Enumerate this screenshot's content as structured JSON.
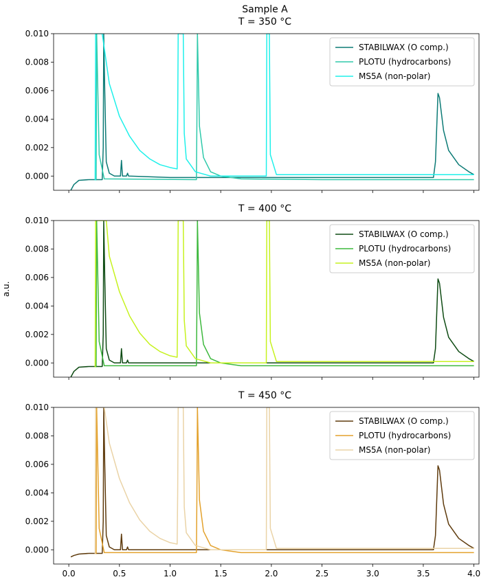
{
  "figure": {
    "suptitle": "Sample A",
    "ylabel": "a.u."
  },
  "chart_data": [
    {
      "type": "line",
      "title": "T = 350 °C",
      "xlim": [
        -0.15,
        4.05
      ],
      "ylim": [
        -0.001,
        0.01
      ],
      "yticks": [
        0.0,
        0.002,
        0.004,
        0.006,
        0.008,
        0.01
      ],
      "ytick_labels": [
        "0.000",
        "0.002",
        "0.004",
        "0.006",
        "0.008",
        "0.010"
      ],
      "xticks": [
        0.0,
        0.5,
        1.0,
        1.5,
        2.0,
        2.5,
        3.0,
        3.5,
        4.0
      ],
      "xtick_labels": [],
      "grid": false,
      "legend_position": "top-right",
      "series": [
        {
          "name": "STABILWAX (O comp.)",
          "color": "#0b7a75",
          "points": [
            [
              0.02,
              -0.001
            ],
            [
              0.05,
              -0.0006
            ],
            [
              0.1,
              -0.0003
            ],
            [
              0.2,
              -0.00025
            ],
            [
              0.33,
              -0.00025
            ],
            [
              0.34,
              0.002
            ],
            [
              0.345,
              0.01
            ],
            [
              0.355,
              0.006
            ],
            [
              0.37,
              0.001
            ],
            [
              0.4,
              0.0002
            ],
            [
              0.45,
              0.0
            ],
            [
              0.51,
              0.0
            ],
            [
              0.52,
              0.0011
            ],
            [
              0.53,
              0.0
            ],
            [
              0.57,
              0.0
            ],
            [
              0.58,
              0.0002
            ],
            [
              0.59,
              0.0
            ],
            [
              1.0,
              -0.0001
            ],
            [
              2.0,
              -0.0001
            ],
            [
              3.0,
              -0.0001
            ],
            [
              3.6,
              -0.0001
            ],
            [
              3.62,
              0.001
            ],
            [
              3.645,
              0.0058
            ],
            [
              3.66,
              0.0055
            ],
            [
              3.7,
              0.0032
            ],
            [
              3.75,
              0.0018
            ],
            [
              3.85,
              0.0008
            ],
            [
              3.95,
              0.0003
            ],
            [
              4.0,
              0.0001
            ]
          ]
        },
        {
          "name": "PLOTU (hydrocarbons)",
          "color": "#2ec9aa",
          "points": [
            [
              0.27,
              -0.0003
            ],
            [
              0.275,
              0.01
            ],
            [
              0.3,
              0.0015
            ],
            [
              0.35,
              -0.0002
            ],
            [
              1.26,
              -0.00025
            ],
            [
              1.265,
              0.004
            ],
            [
              1.27,
              0.01
            ],
            [
              1.29,
              0.0035
            ],
            [
              1.33,
              0.0013
            ],
            [
              1.4,
              0.0003
            ],
            [
              1.5,
              0.0
            ],
            [
              1.7,
              -0.0002
            ],
            [
              2.5,
              -0.00025
            ],
            [
              3.5,
              -0.00025
            ],
            [
              4.0,
              -0.00025
            ]
          ]
        },
        {
          "name": "MS5A (non-polar)",
          "color": "#1ef0ea",
          "points": [
            [
              0.26,
              -0.0003
            ],
            [
              0.265,
              0.01
            ],
            [
              0.33,
              0.01
            ],
            [
              0.36,
              0.0085
            ],
            [
              0.4,
              0.0065
            ],
            [
              0.5,
              0.0042
            ],
            [
              0.6,
              0.0028
            ],
            [
              0.7,
              0.0018
            ],
            [
              0.8,
              0.0012
            ],
            [
              0.9,
              0.0008
            ],
            [
              1.0,
              0.0006
            ],
            [
              1.07,
              0.0005
            ],
            [
              1.075,
              0.004
            ],
            [
              1.08,
              0.01
            ],
            [
              1.13,
              0.01
            ],
            [
              1.14,
              0.003
            ],
            [
              1.16,
              0.0012
            ],
            [
              1.25,
              0.0003
            ],
            [
              1.4,
              0.0
            ],
            [
              1.95,
              0.0
            ],
            [
              1.955,
              0.01
            ],
            [
              1.98,
              0.01
            ],
            [
              1.99,
              0.0015
            ],
            [
              2.05,
              0.0001
            ],
            [
              3.0,
              0.0001
            ],
            [
              4.0,
              0.0001
            ]
          ]
        }
      ]
    },
    {
      "type": "line",
      "title": "T = 400 °C",
      "xlim": [
        -0.15,
        4.05
      ],
      "ylim": [
        -0.001,
        0.01
      ],
      "yticks": [
        0.0,
        0.002,
        0.004,
        0.006,
        0.008,
        0.01
      ],
      "ytick_labels": [
        "0.000",
        "0.002",
        "0.004",
        "0.006",
        "0.008",
        "0.010"
      ],
      "xticks": [
        0.0,
        0.5,
        1.0,
        1.5,
        2.0,
        2.5,
        3.0,
        3.5,
        4.0
      ],
      "xtick_labels": [],
      "grid": false,
      "legend_position": "top-right",
      "series": [
        {
          "name": "STABILWAX (O comp.)",
          "color": "#0d4a12",
          "points": [
            [
              0.02,
              -0.001
            ],
            [
              0.05,
              -0.0006
            ],
            [
              0.1,
              -0.0003
            ],
            [
              0.2,
              -0.00025
            ],
            [
              0.33,
              -0.00025
            ],
            [
              0.34,
              0.002
            ],
            [
              0.345,
              0.01
            ],
            [
              0.355,
              0.006
            ],
            [
              0.37,
              0.001
            ],
            [
              0.4,
              0.0002
            ],
            [
              0.45,
              0.0
            ],
            [
              0.51,
              0.0
            ],
            [
              0.52,
              0.001
            ],
            [
              0.53,
              0.0
            ],
            [
              0.57,
              0.0
            ],
            [
              0.58,
              0.0002
            ],
            [
              0.59,
              0.0
            ],
            [
              1.0,
              0.0
            ],
            [
              2.0,
              0.0
            ],
            [
              3.0,
              0.0
            ],
            [
              3.6,
              0.0
            ],
            [
              3.62,
              0.001
            ],
            [
              3.645,
              0.0059
            ],
            [
              3.66,
              0.0056
            ],
            [
              3.7,
              0.0032
            ],
            [
              3.75,
              0.0018
            ],
            [
              3.85,
              0.0008
            ],
            [
              3.95,
              0.0003
            ],
            [
              4.0,
              0.0001
            ]
          ]
        },
        {
          "name": "PLOTU (hydrocarbons)",
          "color": "#3cb83c",
          "points": [
            [
              0.27,
              -0.0003
            ],
            [
              0.275,
              0.01
            ],
            [
              0.3,
              0.0015
            ],
            [
              0.35,
              -0.0002
            ],
            [
              1.26,
              -0.0002
            ],
            [
              1.265,
              0.004
            ],
            [
              1.27,
              0.01
            ],
            [
              1.29,
              0.0035
            ],
            [
              1.33,
              0.0013
            ],
            [
              1.4,
              0.0003
            ],
            [
              1.5,
              0.0
            ],
            [
              1.7,
              -0.0002
            ],
            [
              2.5,
              -0.0002
            ],
            [
              3.5,
              -0.0002
            ],
            [
              4.0,
              -0.0002
            ]
          ]
        },
        {
          "name": "MS5A (non-polar)",
          "color": "#c6f21e",
          "points": [
            [
              0.26,
              -0.0003
            ],
            [
              0.265,
              0.01
            ],
            [
              0.37,
              0.01
            ],
            [
              0.4,
              0.0075
            ],
            [
              0.5,
              0.005
            ],
            [
              0.6,
              0.0033
            ],
            [
              0.7,
              0.0021
            ],
            [
              0.8,
              0.0013
            ],
            [
              0.9,
              0.0008
            ],
            [
              1.0,
              0.0005
            ],
            [
              1.07,
              0.0004
            ],
            [
              1.075,
              0.004
            ],
            [
              1.08,
              0.01
            ],
            [
              1.13,
              0.01
            ],
            [
              1.14,
              0.003
            ],
            [
              1.16,
              0.0012
            ],
            [
              1.25,
              0.0003
            ],
            [
              1.4,
              0.0
            ],
            [
              1.95,
              0.0
            ],
            [
              1.955,
              0.01
            ],
            [
              1.98,
              0.01
            ],
            [
              1.99,
              0.0015
            ],
            [
              2.05,
              0.0001
            ],
            [
              3.0,
              0.0001
            ],
            [
              4.0,
              0.0001
            ]
          ]
        }
      ]
    },
    {
      "type": "line",
      "title": "T = 450 °C",
      "xlim": [
        -0.15,
        4.05
      ],
      "ylim": [
        -0.001,
        0.01
      ],
      "yticks": [
        0.0,
        0.002,
        0.004,
        0.006,
        0.008,
        0.01
      ],
      "ytick_labels": [
        "0.000",
        "0.002",
        "0.004",
        "0.006",
        "0.008",
        "0.010"
      ],
      "xticks": [
        0.0,
        0.5,
        1.0,
        1.5,
        2.0,
        2.5,
        3.0,
        3.5,
        4.0
      ],
      "xtick_labels": [
        "0.0",
        "0.5",
        "1.0",
        "1.5",
        "2.0",
        "2.5",
        "3.0",
        "3.5",
        "4.0"
      ],
      "grid": false,
      "legend_position": "top-right",
      "series": [
        {
          "name": "STABILWAX (O comp.)",
          "color": "#5e3a0c",
          "points": [
            [
              0.02,
              -0.0005
            ],
            [
              0.05,
              -0.0004
            ],
            [
              0.1,
              -0.0003
            ],
            [
              0.2,
              -0.00025
            ],
            [
              0.33,
              -0.00025
            ],
            [
              0.34,
              0.002
            ],
            [
              0.345,
              0.01
            ],
            [
              0.355,
              0.006
            ],
            [
              0.37,
              0.001
            ],
            [
              0.4,
              0.0002
            ],
            [
              0.45,
              0.0
            ],
            [
              0.51,
              0.0
            ],
            [
              0.52,
              0.0011
            ],
            [
              0.53,
              0.0
            ],
            [
              0.57,
              0.0
            ],
            [
              0.58,
              0.0002
            ],
            [
              0.59,
              0.0
            ],
            [
              1.0,
              0.0
            ],
            [
              2.0,
              0.0
            ],
            [
              3.0,
              0.0
            ],
            [
              3.6,
              0.0
            ],
            [
              3.62,
              0.001
            ],
            [
              3.645,
              0.0059
            ],
            [
              3.66,
              0.0056
            ],
            [
              3.7,
              0.0032
            ],
            [
              3.75,
              0.0018
            ],
            [
              3.85,
              0.0008
            ],
            [
              3.95,
              0.0003
            ],
            [
              4.0,
              0.0001
            ]
          ]
        },
        {
          "name": "PLOTU (hydrocarbons)",
          "color": "#e3a12b",
          "points": [
            [
              0.27,
              -0.0003
            ],
            [
              0.275,
              0.01
            ],
            [
              0.3,
              0.0015
            ],
            [
              0.35,
              -0.0002
            ],
            [
              1.26,
              -0.0002
            ],
            [
              1.265,
              0.004
            ],
            [
              1.27,
              0.01
            ],
            [
              1.29,
              0.0035
            ],
            [
              1.33,
              0.0013
            ],
            [
              1.4,
              0.0003
            ],
            [
              1.5,
              0.0
            ],
            [
              1.7,
              -0.0002
            ],
            [
              2.5,
              -0.0002
            ],
            [
              3.5,
              -0.0002
            ],
            [
              4.0,
              -0.0002
            ]
          ]
        },
        {
          "name": "MS5A (non-polar)",
          "color": "#ead3a6",
          "points": [
            [
              0.26,
              -0.0003
            ],
            [
              0.265,
              0.01
            ],
            [
              0.35,
              0.01
            ],
            [
              0.4,
              0.0075
            ],
            [
              0.5,
              0.005
            ],
            [
              0.6,
              0.0033
            ],
            [
              0.7,
              0.0021
            ],
            [
              0.8,
              0.0013
            ],
            [
              0.9,
              0.0008
            ],
            [
              1.0,
              0.0005
            ],
            [
              1.07,
              0.0004
            ],
            [
              1.075,
              0.004
            ],
            [
              1.08,
              0.01
            ],
            [
              1.13,
              0.01
            ],
            [
              1.14,
              0.003
            ],
            [
              1.16,
              0.0012
            ],
            [
              1.25,
              0.0003
            ],
            [
              1.4,
              0.0
            ],
            [
              1.95,
              0.0
            ],
            [
              1.955,
              0.01
            ],
            [
              1.98,
              0.01
            ],
            [
              1.99,
              0.0015
            ],
            [
              2.05,
              0.0001
            ],
            [
              3.0,
              0.0001
            ],
            [
              4.0,
              0.0001
            ]
          ]
        }
      ]
    }
  ]
}
